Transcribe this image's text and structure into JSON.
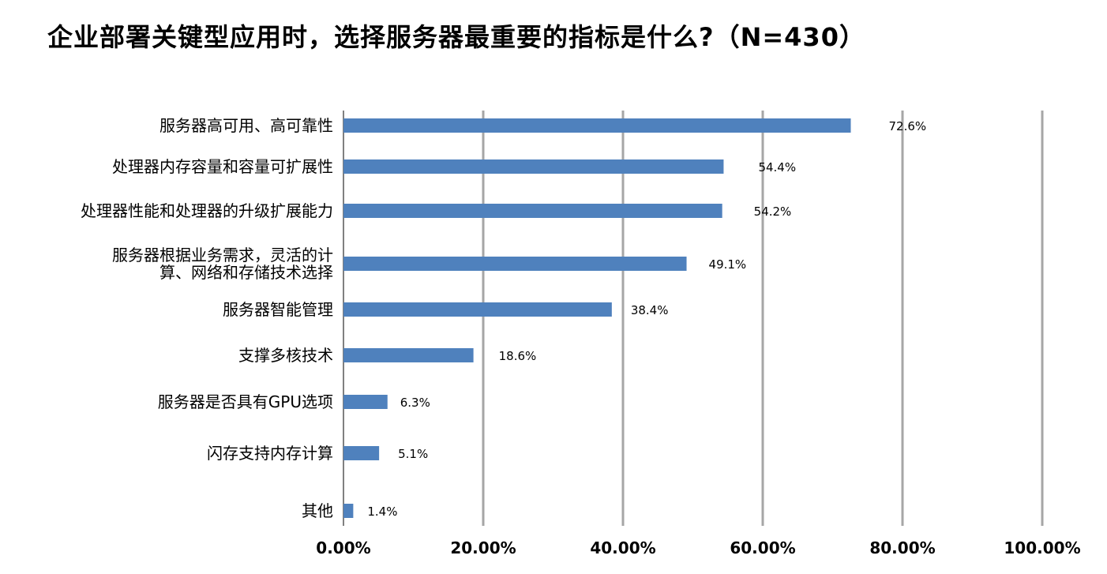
{
  "chart_data": {
    "type": "bar",
    "orientation": "horizontal",
    "title": "企业部署关键型应用时，选择服务器最重要的指标是什么?（N=430）",
    "categories": [
      "服务器高可用、高可靠性",
      "处理器内存容量和容量可扩展性",
      "处理器性能和处理器的升级扩展能力",
      [
        "服务器根据业务需求，灵活的计",
        "算、网络和存储技术选择"
      ],
      "服务器智能管理",
      "支撑多核技术",
      "服务器是否具有GPU选项",
      "闪存支持内存计算",
      "其他"
    ],
    "values": [
      72.6,
      54.4,
      54.2,
      49.1,
      38.4,
      18.6,
      6.3,
      5.1,
      1.4
    ],
    "value_labels": [
      "72.6%",
      "54.4%",
      "54.2%",
      "49.1%",
      "38.4%",
      "18.6%",
      "6.3%",
      "5.1%",
      "1.4%"
    ],
    "xlim": [
      0,
      100
    ],
    "x_ticks": [
      0,
      20,
      40,
      60,
      80,
      100
    ],
    "x_tick_labels": [
      "0.00%",
      "20.00%",
      "40.00%",
      "60.00%",
      "80.00%",
      "100.00%"
    ],
    "grid": "vertical",
    "bar_color": "#4F81BD",
    "grid_color": "#A6A6A6"
  }
}
